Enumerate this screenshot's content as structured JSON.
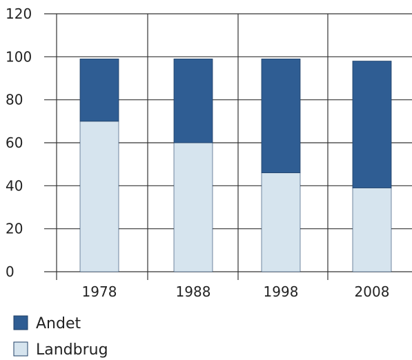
{
  "chart_data": {
    "type": "bar",
    "stacked": true,
    "categories": [
      "1978",
      "1988",
      "1998",
      "2008"
    ],
    "series": [
      {
        "name": "Landbrug",
        "values": [
          70,
          60,
          46,
          39
        ],
        "color": "#d6e4ee"
      },
      {
        "name": "Andet",
        "values": [
          29,
          39,
          53,
          59
        ],
        "color": "#2f5d93"
      }
    ],
    "yticks": [
      "0",
      "20",
      "40",
      "60",
      "80",
      "100",
      "120"
    ],
    "ylim": [
      0,
      120
    ],
    "grid": true,
    "legend_position": "bottom-left",
    "title": "",
    "xlabel": "",
    "ylabel": ""
  }
}
